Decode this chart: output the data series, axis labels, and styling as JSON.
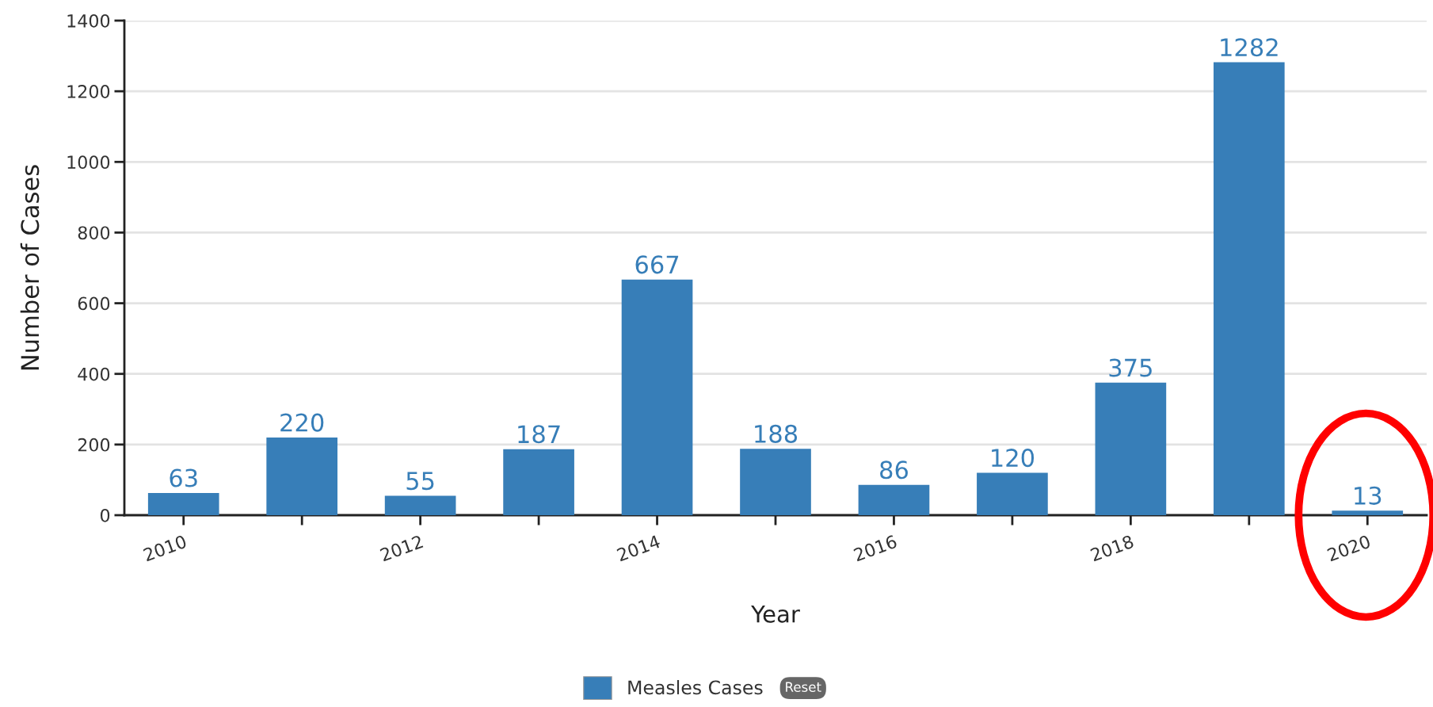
{
  "chart_data": {
    "type": "bar",
    "xlabel": "Year",
    "ylabel": "Number of Cases",
    "categories": [
      "2010",
      null,
      "2012",
      null,
      "2014",
      null,
      "2016",
      null,
      "2018",
      null,
      "2020"
    ],
    "series": [
      {
        "name": "Measles Cases",
        "color": "#377eb8",
        "values": [
          63,
          220,
          55,
          187,
          667,
          188,
          86,
          120,
          375,
          1282,
          13
        ]
      }
    ],
    "ylim": [
      0,
      1400
    ],
    "yticks": [
      0,
      200,
      400,
      600,
      800,
      1000,
      1200,
      1400
    ],
    "grid": "y",
    "data_labels": true,
    "legend": "bottom",
    "annotations": [
      "Reset"
    ]
  }
}
